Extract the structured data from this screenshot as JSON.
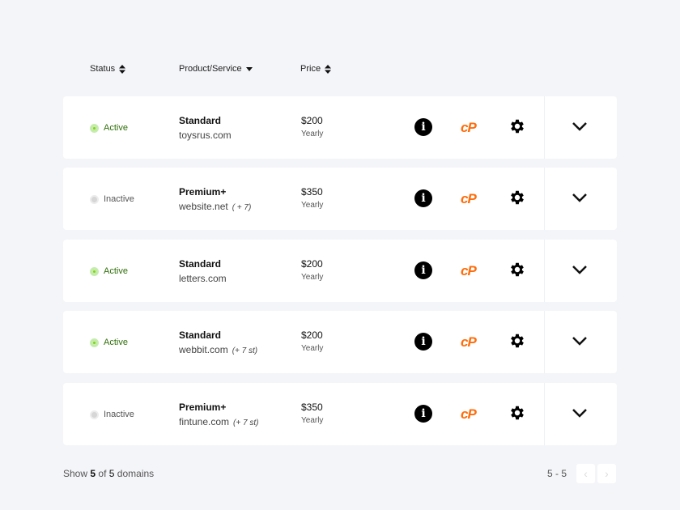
{
  "headers": {
    "status": "Status",
    "product": "Product/Service",
    "price": "Price"
  },
  "rows": [
    {
      "status": "Active",
      "active": true,
      "product": "Standard",
      "domain": "toysrus.com",
      "extra": "",
      "price": "$200",
      "period": "Yearly"
    },
    {
      "status": "Inactive",
      "active": false,
      "product": "Premium+",
      "domain": "website.net",
      "extra": "( + 7)",
      "price": "$350",
      "period": "Yearly"
    },
    {
      "status": "Active",
      "active": true,
      "product": "Standard",
      "domain": "letters.com",
      "extra": "",
      "price": "$200",
      "period": "Yearly"
    },
    {
      "status": "Active",
      "active": true,
      "product": "Standard",
      "domain": "webbit.com",
      "extra": "(+ 7 st)",
      "price": "$200",
      "period": "Yearly"
    },
    {
      "status": "Inactive",
      "active": false,
      "product": "Premium+",
      "domain": "fintune.com",
      "extra": "(+ 7 st)",
      "price": "$350",
      "period": "Yearly"
    }
  ],
  "icons": {
    "info": "i",
    "cpanel": "cP"
  },
  "footer": {
    "show": "Show",
    "shown": "5",
    "of": "of",
    "total": "5",
    "unit": "domains",
    "range": "5 - 5"
  },
  "colors": {
    "active": "#7ed321",
    "cpanel": "#ff6c0a"
  }
}
